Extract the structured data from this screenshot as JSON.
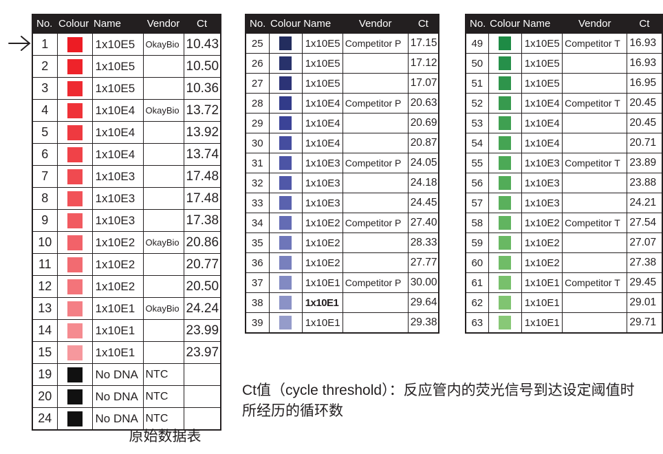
{
  "columns": [
    "No.",
    "Colour",
    "Name",
    "Vendor",
    "Ct"
  ],
  "tables": [
    {
      "id": "table-okaybio",
      "rows": [
        {
          "no": "1",
          "color": "#ed1c24",
          "name": "1x10E5",
          "vendor": "OkayBio",
          "ct": "10.43"
        },
        {
          "no": "2",
          "color": "#ee232a",
          "name": "1x10E5",
          "vendor": "",
          "ct": "10.50"
        },
        {
          "no": "3",
          "color": "#ee2a31",
          "name": "1x10E5",
          "vendor": "",
          "ct": "10.36"
        },
        {
          "no": "4",
          "color": "#ef3238",
          "name": "1x10E4",
          "vendor": "OkayBio",
          "ct": "13.72"
        },
        {
          "no": "5",
          "color": "#ef3a40",
          "name": "1x10E4",
          "vendor": "",
          "ct": "13.92"
        },
        {
          "no": "6",
          "color": "#f04248",
          "name": "1x10E4",
          "vendor": "",
          "ct": "13.74"
        },
        {
          "no": "7",
          "color": "#f04a50",
          "name": "1x10E3",
          "vendor": "",
          "ct": "17.48"
        },
        {
          "no": "8",
          "color": "#f15258",
          "name": "1x10E3",
          "vendor": "",
          "ct": "17.48"
        },
        {
          "no": "9",
          "color": "#f15a60",
          "name": "1x10E3",
          "vendor": "",
          "ct": "17.38"
        },
        {
          "no": "10",
          "color": "#f26269",
          "name": "1x10E2",
          "vendor": "OkayBio",
          "ct": "20.86"
        },
        {
          "no": "11",
          "color": "#f26b71",
          "name": "1x10E2",
          "vendor": "",
          "ct": "20.77"
        },
        {
          "no": "12",
          "color": "#f3747a",
          "name": "1x10E2",
          "vendor": "",
          "ct": "20.50"
        },
        {
          "no": "13",
          "color": "#f47f85",
          "name": "1x10E1",
          "vendor": "OkayBio",
          "ct": "24.24"
        },
        {
          "no": "14",
          "color": "#f58b90",
          "name": "1x10E1",
          "vendor": "",
          "ct": "23.99"
        },
        {
          "no": "15",
          "color": "#f6989d",
          "name": "1x10E1",
          "vendor": "",
          "ct": "23.97"
        },
        {
          "no": "19",
          "color": "#111111",
          "name": "No DNA",
          "vendor": "NTC",
          "ct": ""
        },
        {
          "no": "20",
          "color": "#111111",
          "name": "No DNA",
          "vendor": "NTC",
          "ct": ""
        },
        {
          "no": "24",
          "color": "#111111",
          "name": "No DNA",
          "vendor": "NTC",
          "ct": ""
        }
      ]
    },
    {
      "id": "table-competitor-p",
      "rows": [
        {
          "no": "25",
          "color": "#232d5e",
          "name": "1x10E5",
          "vendor": "Competitor P",
          "ct": "17.15"
        },
        {
          "no": "26",
          "color": "#28326b",
          "name": "1x10E5",
          "vendor": "",
          "ct": "17.12"
        },
        {
          "no": "27",
          "color": "#2c3376",
          "name": "1x10E5",
          "vendor": "",
          "ct": "17.07"
        },
        {
          "no": "28",
          "color": "#323b89",
          "name": "1x10E4",
          "vendor": "Competitor P",
          "ct": "20.63"
        },
        {
          "no": "29",
          "color": "#3b4397",
          "name": "1x10E4",
          "vendor": "",
          "ct": "20.69"
        },
        {
          "no": "30",
          "color": "#454d9f",
          "name": "1x10E4",
          "vendor": "",
          "ct": "20.87"
        },
        {
          "no": "31",
          "color": "#4c54a5",
          "name": "1x10E3",
          "vendor": "Competitor P",
          "ct": "24.05"
        },
        {
          "no": "32",
          "color": "#5058a8",
          "name": "1x10E3",
          "vendor": "",
          "ct": "24.18"
        },
        {
          "no": "33",
          "color": "#5a62ae",
          "name": "1x10E3",
          "vendor": "",
          "ct": "24.45"
        },
        {
          "no": "34",
          "color": "#646cb4",
          "name": "1x10E2",
          "vendor": "Competitor P",
          "ct": "27.40"
        },
        {
          "no": "35",
          "color": "#6e76b9",
          "name": "1x10E2",
          "vendor": "",
          "ct": "28.33"
        },
        {
          "no": "36",
          "color": "#7880bd",
          "name": "1x10E2",
          "vendor": "",
          "ct": "27.77"
        },
        {
          "no": "37",
          "color": "#828ac2",
          "name": "1x10E1",
          "vendor": "Competitor P",
          "ct": "30.00"
        },
        {
          "no": "38",
          "color": "#8b92c6",
          "name": "1x10E1",
          "vendor": "",
          "ct": "29.64",
          "name_large": true
        },
        {
          "no": "39",
          "color": "#959cca",
          "name": "1x10E1",
          "vendor": "",
          "ct": "29.38"
        }
      ]
    },
    {
      "id": "table-competitor-t",
      "rows": [
        {
          "no": "49",
          "color": "#1e8b45",
          "name": "1x10E5",
          "vendor": "Competitor T",
          "ct": "16.93"
        },
        {
          "no": "50",
          "color": "#26904a",
          "name": "1x10E5",
          "vendor": "",
          "ct": "16.93"
        },
        {
          "no": "51",
          "color": "#2e944b",
          "name": "1x10E5",
          "vendor": "",
          "ct": "16.95"
        },
        {
          "no": "52",
          "color": "#379a4e",
          "name": "1x10E4",
          "vendor": "Competitor T",
          "ct": "20.45"
        },
        {
          "no": "53",
          "color": "#3fa051",
          "name": "1x10E4",
          "vendor": "",
          "ct": "20.45"
        },
        {
          "no": "54",
          "color": "#45a453",
          "name": "1x10E4",
          "vendor": "",
          "ct": "20.71"
        },
        {
          "no": "55",
          "color": "#4ca956",
          "name": "1x10E3",
          "vendor": "Competitor T",
          "ct": "23.89"
        },
        {
          "no": "56",
          "color": "#52ac58",
          "name": "1x10E3",
          "vendor": "",
          "ct": "23.88"
        },
        {
          "no": "57",
          "color": "#5ab05c",
          "name": "1x10E3",
          "vendor": "",
          "ct": "24.21"
        },
        {
          "no": "58",
          "color": "#61b460",
          "name": "1x10E2",
          "vendor": "Competitor T",
          "ct": "27.54"
        },
        {
          "no": "59",
          "color": "#69b863",
          "name": "1x10E2",
          "vendor": "",
          "ct": "27.07"
        },
        {
          "no": "60",
          "color": "#70bc67",
          "name": "1x10E2",
          "vendor": "",
          "ct": "27.38"
        },
        {
          "no": "61",
          "color": "#78c06c",
          "name": "1x10E1",
          "vendor": "Competitor T",
          "ct": "29.45"
        },
        {
          "no": "62",
          "color": "#80c471",
          "name": "1x10E1",
          "vendor": "",
          "ct": "29.01"
        },
        {
          "no": "63",
          "color": "#88c877",
          "name": "1x10E1",
          "vendor": "",
          "ct": "29.71"
        }
      ]
    }
  ],
  "annotations": {
    "table1_caption": "原始数据表",
    "ct_note": "Ct值（cycle threshold）：反应管内的荧光信号到达设定阈值时\n所经历的循环数"
  },
  "colors": {
    "header_bg": "#231f20",
    "header_text": "#ffffff",
    "border": "#231f20"
  },
  "icons": {
    "row_pointer": "right-arrow"
  }
}
